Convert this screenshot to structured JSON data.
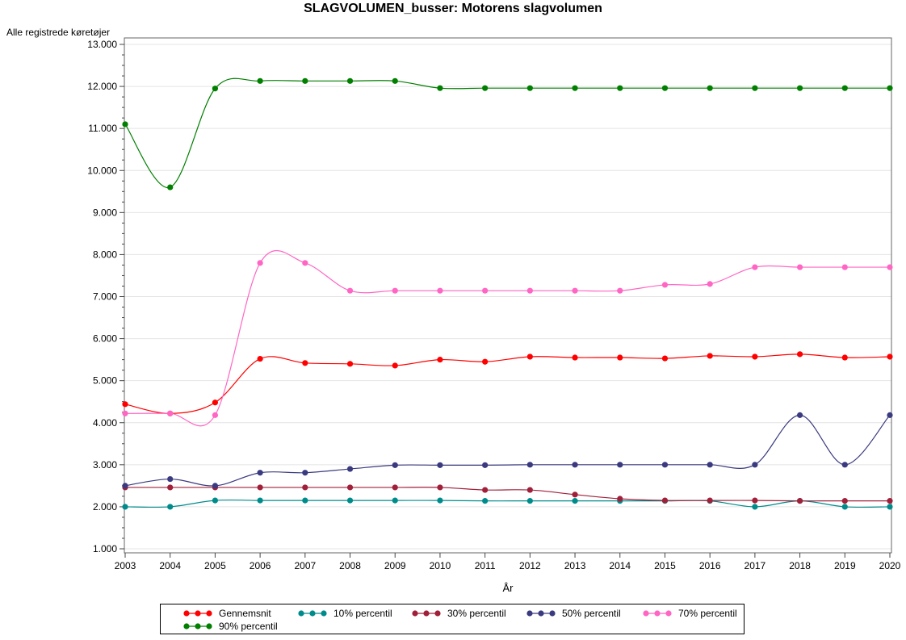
{
  "chart_data": {
    "type": "line",
    "title": "SLAGVOLUMEN_busser: Motorens slagvolumen",
    "ylabel": "Alle registrede køretøjer",
    "xlabel": "År",
    "x": [
      "2003",
      "2004",
      "2005",
      "2006",
      "2007",
      "2008",
      "2009",
      "2010",
      "2011",
      "2012",
      "2013",
      "2014",
      "2015",
      "2016",
      "2017",
      "2018",
      "2019",
      "2020"
    ],
    "ylim": [
      1000,
      13000
    ],
    "yticks": [
      1000,
      2000,
      3000,
      4000,
      5000,
      6000,
      7000,
      8000,
      9000,
      10000,
      11000,
      12000,
      13000
    ],
    "ytick_labels": [
      "1.000",
      "2.000",
      "3.000",
      "4.000",
      "5.000",
      "6.000",
      "7.000",
      "8.000",
      "9.000",
      "10.000",
      "11.000",
      "12.000",
      "13.000"
    ],
    "grid": "horizontal",
    "legend_position": "bottom",
    "series": [
      {
        "name": "Gennemsnit",
        "color": "#ff0000",
        "values": [
          4440,
          4220,
          4480,
          5520,
          5420,
          5400,
          5360,
          5500,
          5450,
          5570,
          5550,
          5550,
          5530,
          5590,
          5570,
          5630,
          5550,
          5570
        ]
      },
      {
        "name": "10% percentil",
        "color": "#008b8b",
        "values": [
          2000,
          2000,
          2150,
          2150,
          2150,
          2150,
          2150,
          2150,
          2140,
          2140,
          2140,
          2140,
          2140,
          2140,
          2000,
          2140,
          2000,
          2000
        ]
      },
      {
        "name": "30% percentil",
        "color": "#a0203a",
        "values": [
          2460,
          2460,
          2460,
          2460,
          2460,
          2460,
          2460,
          2460,
          2400,
          2400,
          2290,
          2190,
          2150,
          2150,
          2150,
          2140,
          2140,
          2140
        ]
      },
      {
        "name": "50% percentil",
        "color": "#3a3a80",
        "values": [
          2500,
          2660,
          2500,
          2810,
          2810,
          2900,
          2990,
          2990,
          2990,
          3000,
          3000,
          3000,
          3000,
          3000,
          3000,
          4180,
          3000,
          4180
        ]
      },
      {
        "name": "70% percentil",
        "color": "#ff66c4",
        "values": [
          4220,
          4220,
          4180,
          7800,
          7800,
          7140,
          7140,
          7140,
          7140,
          7140,
          7140,
          7140,
          7280,
          7300,
          7700,
          7700,
          7700,
          7700
        ]
      },
      {
        "name": "90% percentil",
        "color": "#007f00",
        "values": [
          11100,
          9600,
          11950,
          12130,
          12130,
          12130,
          12130,
          11960,
          11960,
          11960,
          11960,
          11960,
          11960,
          11960,
          11960,
          11960,
          11960,
          11960
        ]
      }
    ]
  }
}
